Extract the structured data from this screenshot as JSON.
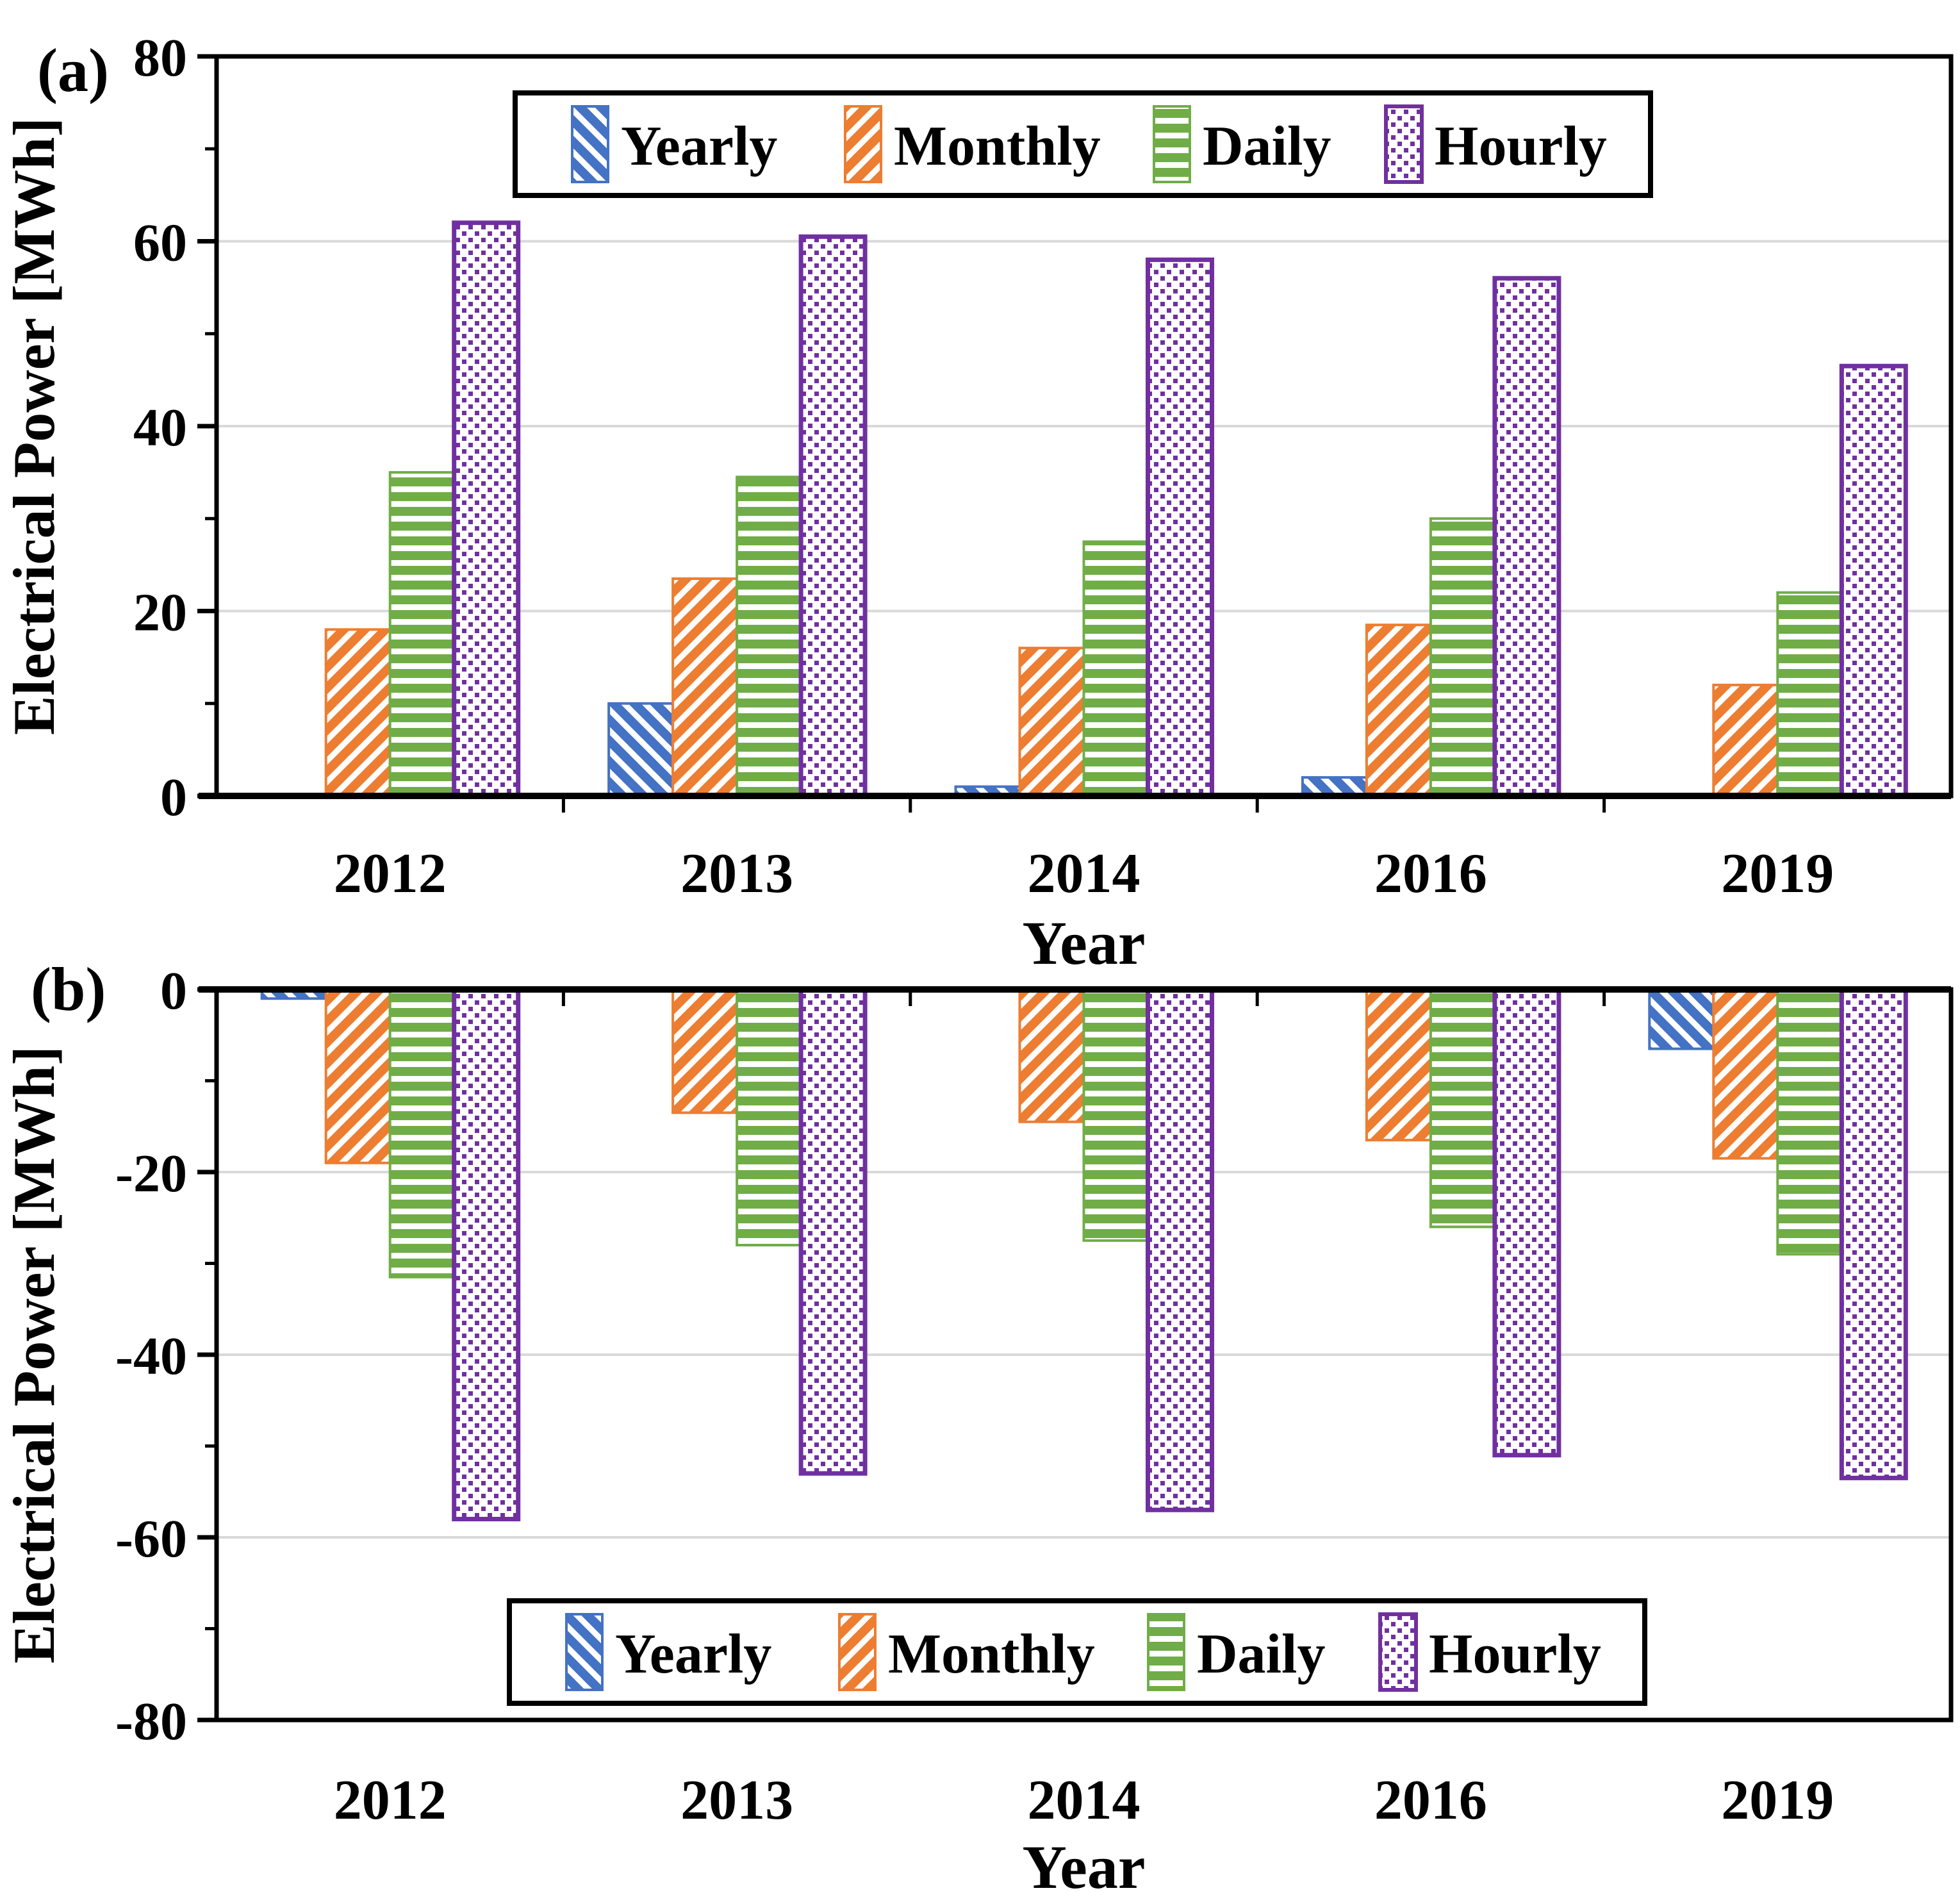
{
  "figure": {
    "background": "#ffffff",
    "axis_color": "#000000",
    "grid_color": "#d9d9d9",
    "legend_border_color": "#000000"
  },
  "chart_data": [
    {
      "id": "a",
      "panel_label": "(a)",
      "type": "bar",
      "xlabel": "Year",
      "ylabel": "Electrical Power [MWh]",
      "categories": [
        "2012",
        "2013",
        "2014",
        "2016",
        "2019"
      ],
      "series": [
        {
          "name": "Yearly",
          "color": "#4472C4",
          "pattern": "diagonal-up",
          "values": [
            0,
            10,
            1,
            2,
            0
          ]
        },
        {
          "name": "Monthly",
          "color": "#ED7D31",
          "pattern": "diagonal-down",
          "values": [
            18,
            23.5,
            16,
            18.5,
            12
          ]
        },
        {
          "name": "Daily",
          "color": "#70AD47",
          "pattern": "horizontal",
          "values": [
            35,
            34.5,
            27.5,
            30,
            22
          ]
        },
        {
          "name": "Hourly",
          "color": "#7030A0",
          "pattern": "dots",
          "values": [
            62,
            60.5,
            58,
            56,
            46.5
          ]
        }
      ],
      "ylim": [
        0,
        80
      ],
      "yticks": [
        0,
        20,
        40,
        60,
        80
      ],
      "ytick_labels": [
        "0",
        "20",
        "40",
        "60",
        "80"
      ],
      "grid": true,
      "legend_position": "top-center-inside"
    },
    {
      "id": "b",
      "panel_label": "(b)",
      "type": "bar",
      "xlabel": "Year",
      "ylabel": "Electrical Power [MWh]",
      "categories": [
        "2012",
        "2013",
        "2014",
        "2016",
        "2019"
      ],
      "series": [
        {
          "name": "Yearly",
          "color": "#4472C4",
          "pattern": "diagonal-up",
          "values": [
            -1,
            0,
            0,
            0,
            -6.5
          ]
        },
        {
          "name": "Monthly",
          "color": "#ED7D31",
          "pattern": "diagonal-down",
          "values": [
            -19,
            -13.5,
            -14.5,
            -16.5,
            -18.5
          ]
        },
        {
          "name": "Daily",
          "color": "#70AD47",
          "pattern": "horizontal",
          "values": [
            -31.5,
            -28,
            -27.5,
            -26,
            -29
          ]
        },
        {
          "name": "Hourly",
          "color": "#7030A0",
          "pattern": "dots",
          "values": [
            -58,
            -53,
            -57,
            -51,
            -53.5
          ]
        }
      ],
      "ylim": [
        -80,
        0
      ],
      "yticks": [
        0,
        -20,
        -40,
        -60,
        -80
      ],
      "ytick_labels": [
        "0",
        "-20",
        "-40",
        "-60",
        "-80"
      ],
      "grid": true,
      "legend_position": "bottom-center-inside"
    }
  ]
}
